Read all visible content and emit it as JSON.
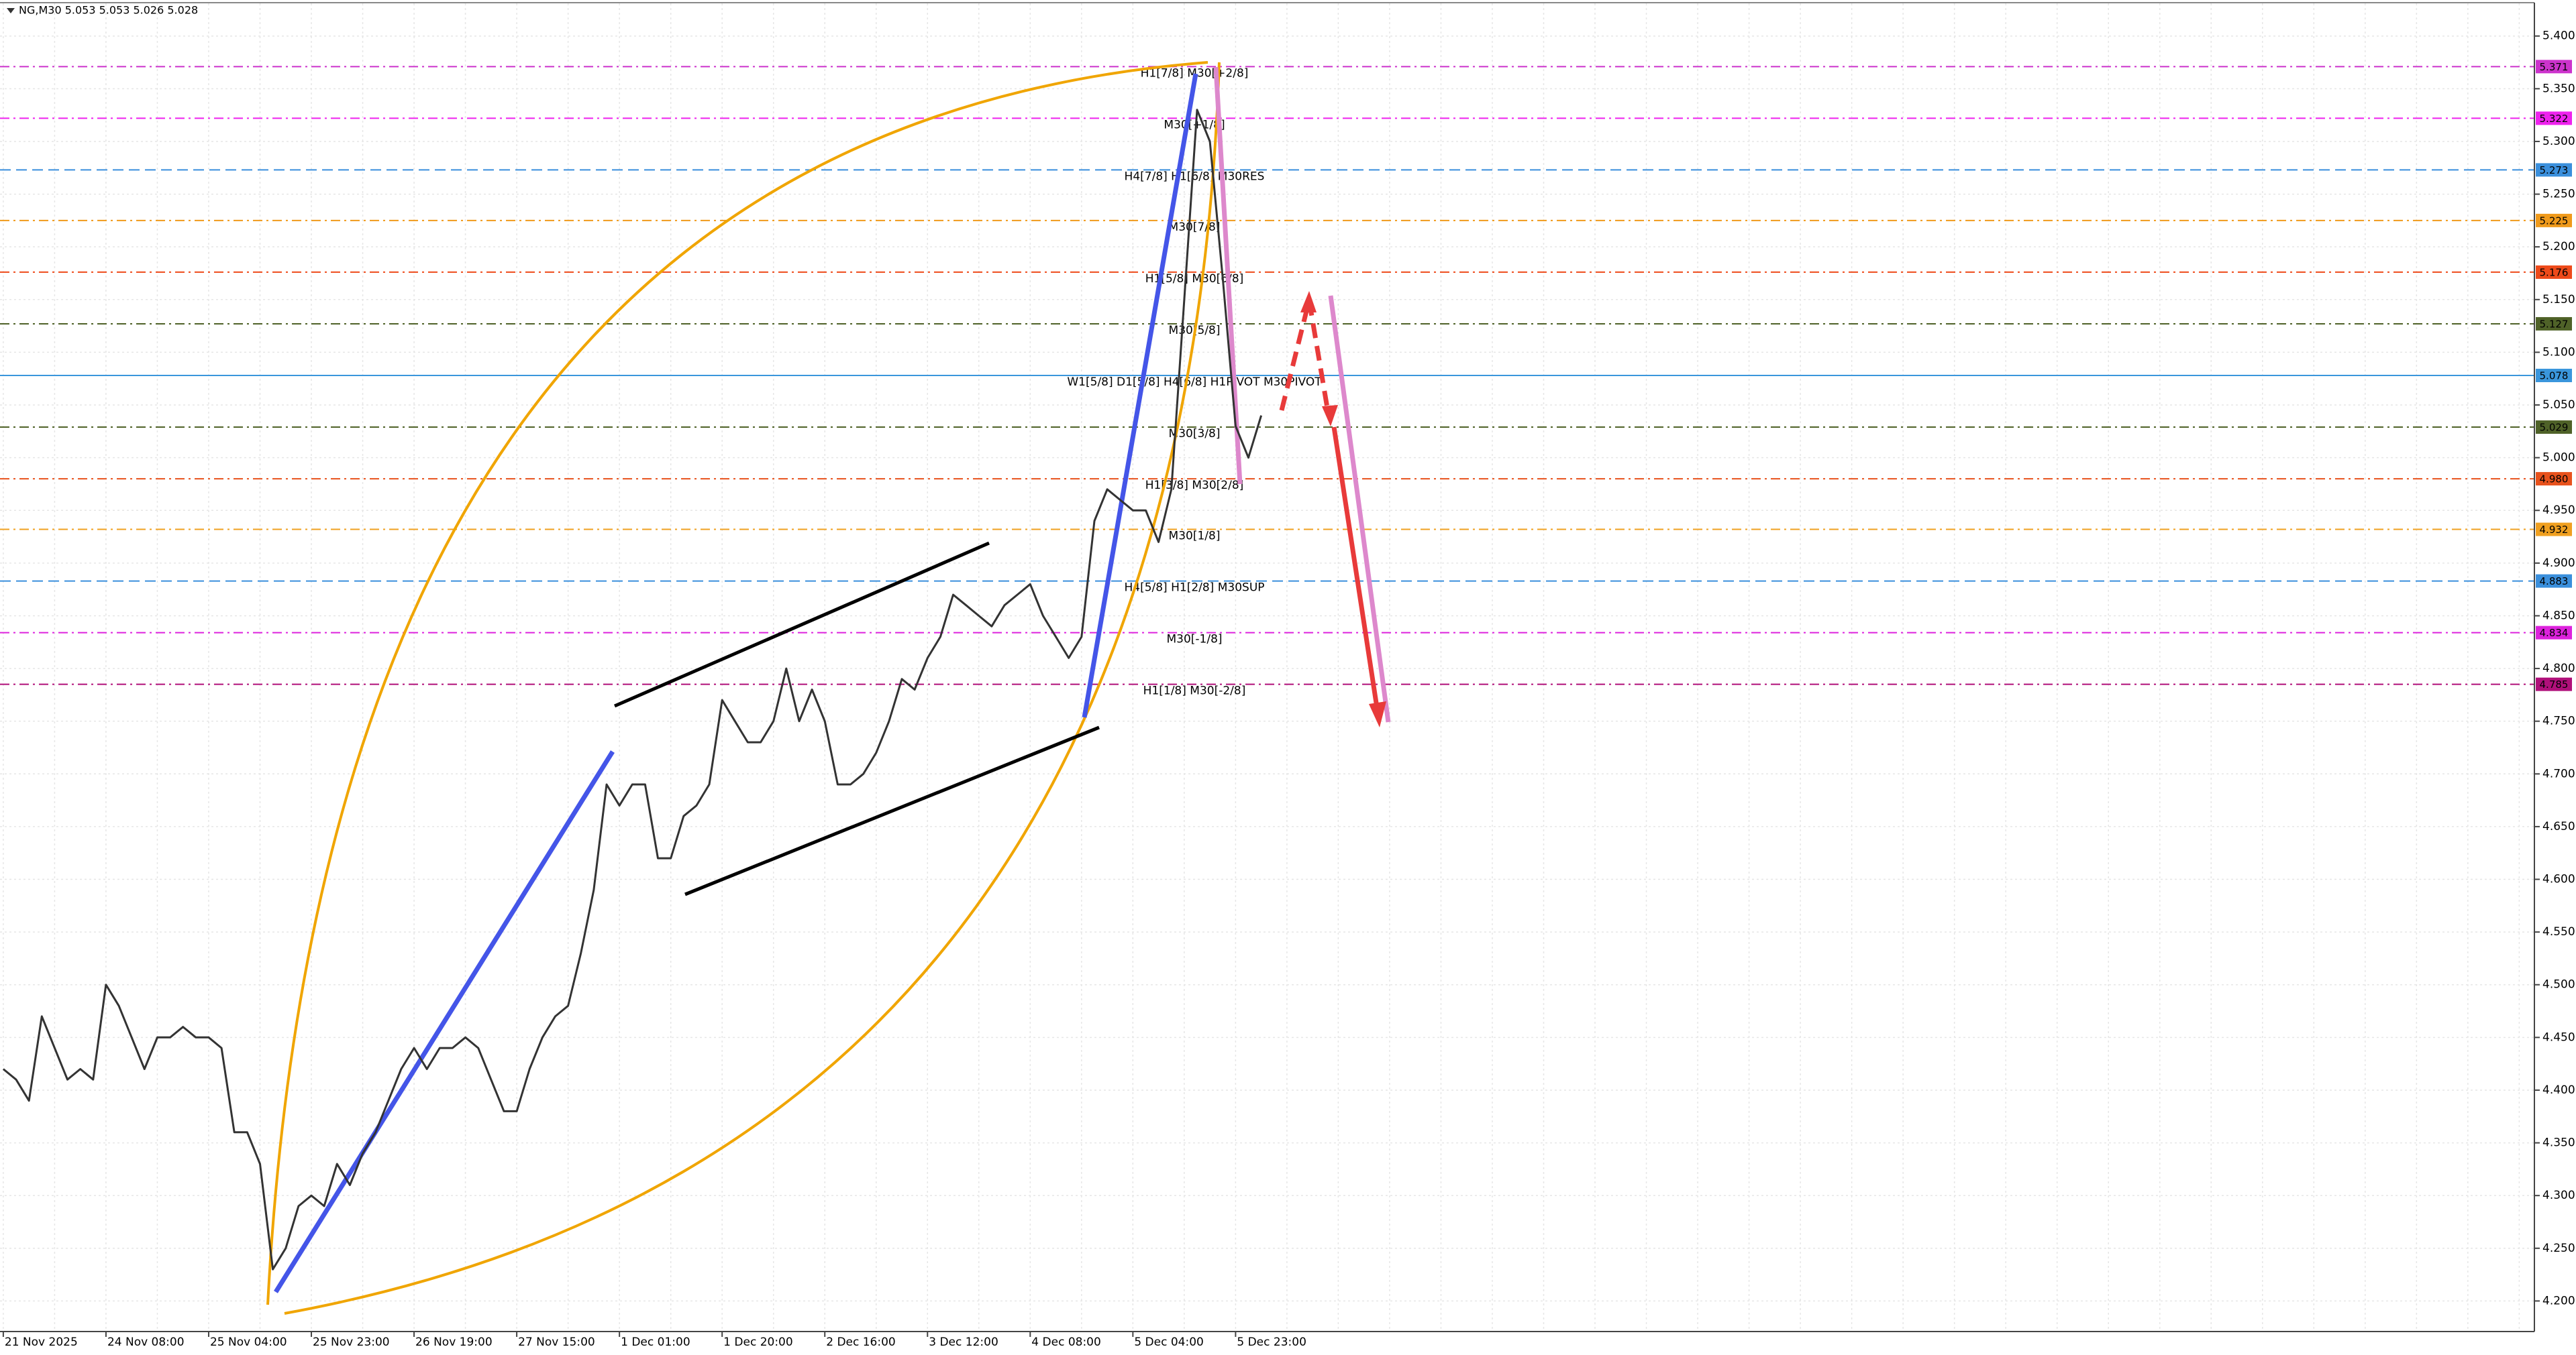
{
  "header": {
    "title": "NG,M30  5.053 5.053 5.026 5.028"
  },
  "chart_data": {
    "type": "line",
    "categories": [
      "21 Nov 2025",
      null,
      null,
      null,
      null,
      null,
      null,
      null,
      "24 Nov 08:00",
      null,
      null,
      null,
      null,
      null,
      null,
      null,
      "25 Nov 04:00",
      null,
      null,
      null,
      null,
      null,
      null,
      null,
      "25 Nov 23:00",
      null,
      null,
      null,
      null,
      null,
      null,
      null,
      "26 Nov 19:00",
      null,
      null,
      null,
      null,
      null,
      null,
      null,
      "27 Nov 15:00",
      null,
      null,
      null,
      null,
      null,
      null,
      null,
      "1 Dec 01:00",
      null,
      null,
      null,
      null,
      null,
      null,
      null,
      "1 Dec 20:00",
      null,
      null,
      null,
      null,
      null,
      null,
      null,
      "2 Dec 16:00",
      null,
      null,
      null,
      null,
      null,
      null,
      null,
      "3 Dec 12:00",
      null,
      null,
      null,
      null,
      null,
      null,
      null,
      "4 Dec 08:00",
      null,
      null,
      null,
      null,
      null,
      null,
      null,
      "5 Dec 04:00",
      null,
      null,
      null,
      null,
      null,
      null,
      null,
      "5 Dec 23:00",
      null,
      null
    ],
    "color": "#333333",
    "values": [
      4.42,
      4.41,
      4.39,
      4.47,
      4.44,
      4.41,
      4.42,
      4.41,
      4.5,
      4.48,
      4.45,
      4.42,
      4.45,
      4.45,
      4.46,
      4.45,
      4.45,
      4.44,
      4.36,
      4.36,
      4.33,
      4.23,
      4.25,
      4.29,
      4.3,
      4.29,
      4.33,
      4.31,
      4.34,
      4.36,
      4.39,
      4.42,
      4.44,
      4.42,
      4.44,
      4.44,
      4.45,
      4.44,
      4.41,
      4.38,
      4.38,
      4.42,
      4.45,
      4.47,
      4.48,
      4.53,
      4.59,
      4.69,
      4.67,
      4.69,
      4.69,
      4.62,
      4.62,
      4.66,
      4.67,
      4.69,
      4.77,
      4.75,
      4.73,
      4.73,
      4.75,
      4.8,
      4.75,
      4.78,
      4.75,
      4.69,
      4.69,
      4.7,
      4.72,
      4.75,
      4.79,
      4.78,
      4.81,
      4.83,
      4.87,
      4.86,
      4.85,
      4.84,
      4.86,
      4.87,
      4.88,
      4.85,
      4.83,
      4.81,
      4.83,
      4.94,
      4.97,
      4.96,
      4.95,
      4.95,
      4.92,
      4.97,
      5.15,
      5.33,
      5.3,
      5.17,
      5.03,
      5.0,
      5.04
    ],
    "ylim": [
      4.171,
      5.431
    ],
    "yticks": [
      {
        "value": 4.2,
        "label": "4.200"
      },
      {
        "value": 4.25,
        "label": "4.250"
      },
      {
        "value": 4.3,
        "label": "4.300"
      },
      {
        "value": 4.35,
        "label": "4.350"
      },
      {
        "value": 4.4,
        "label": "4.400"
      },
      {
        "value": 4.45,
        "label": "4.450"
      },
      {
        "value": 4.5,
        "label": "4.500"
      },
      {
        "value": 4.55,
        "label": "4.550"
      },
      {
        "value": 4.6,
        "label": "4.600"
      },
      {
        "value": 4.65,
        "label": "4.650"
      },
      {
        "value": 4.7,
        "label": "4.700"
      },
      {
        "value": 4.75,
        "label": "4.750"
      },
      {
        "value": 4.8,
        "label": "4.800"
      },
      {
        "value": 4.85,
        "label": "4.850"
      },
      {
        "value": 4.9,
        "label": "4.900"
      },
      {
        "value": 4.95,
        "label": "4.950"
      },
      {
        "value": 5.0,
        "label": "5.000"
      },
      {
        "value": 5.05,
        "label": "5.050"
      },
      {
        "value": 5.1,
        "label": "5.100"
      },
      {
        "value": 5.15,
        "label": "5.150"
      },
      {
        "value": 5.2,
        "label": "5.200"
      },
      {
        "value": 5.25,
        "label": "5.250"
      },
      {
        "value": 5.3,
        "label": "5.300"
      },
      {
        "value": 5.35,
        "label": "5.350"
      },
      {
        "value": 5.4,
        "label": "5.400"
      }
    ],
    "grid": true,
    "levels": [
      {
        "value": 5.371,
        "label": "5.371",
        "text": "H1[7/8] M30[+2/8]",
        "color": "#cc33cc",
        "style": "dashdot"
      },
      {
        "value": 5.322,
        "label": "5.322",
        "text": "M30[+1/8]",
        "color": "#ee22ee",
        "style": "dashdot"
      },
      {
        "value": 5.273,
        "label": "5.273",
        "text": "H4[7/8] H1[6/8] M30RES",
        "color": "#3a8fdc",
        "style": "dash"
      },
      {
        "value": 5.225,
        "label": "5.225",
        "text": "M30[7/8]",
        "color": "#f09a1a",
        "style": "dashdot"
      },
      {
        "value": 5.176,
        "label": "5.176",
        "text": "H1[5/8] M30[6/8]",
        "color": "#ee4a1a",
        "style": "dashdot"
      },
      {
        "value": 5.127,
        "label": "5.127",
        "text": "M30[5/8]",
        "color": "#4f6228",
        "style": "dashdot"
      },
      {
        "value": 5.078,
        "label": "5.078",
        "text": "W1[5/8] D1[5/8] H4[6/8] H1PIVOT M30PIVOT",
        "color": "#3a96dc",
        "style": "solid"
      },
      {
        "value": 5.029,
        "label": "5.029",
        "text": "M30[3/8]",
        "color": "#4f6228",
        "style": "dashdot"
      },
      {
        "value": 4.98,
        "label": "4.980",
        "text": "H1[3/8] M30[2/8]",
        "color": "#e8521c",
        "style": "dashdot"
      },
      {
        "value": 4.932,
        "label": "4.932",
        "text": "M30[1/8]",
        "color": "#f0a020",
        "style": "dashdot"
      },
      {
        "value": 4.883,
        "label": "4.883",
        "text": "H4[5/8] H1[2/8] M30SUP",
        "color": "#3a8fdc",
        "style": "dash"
      },
      {
        "value": 4.834,
        "label": "4.834",
        "text": "M30[-1/8]",
        "color": "#dd22dd",
        "style": "dashdot"
      },
      {
        "value": 4.785,
        "label": "4.785",
        "text": "H1[1/8] M30[-2/8]",
        "color": "#b0107a",
        "style": "dashdot"
      }
    ]
  }
}
